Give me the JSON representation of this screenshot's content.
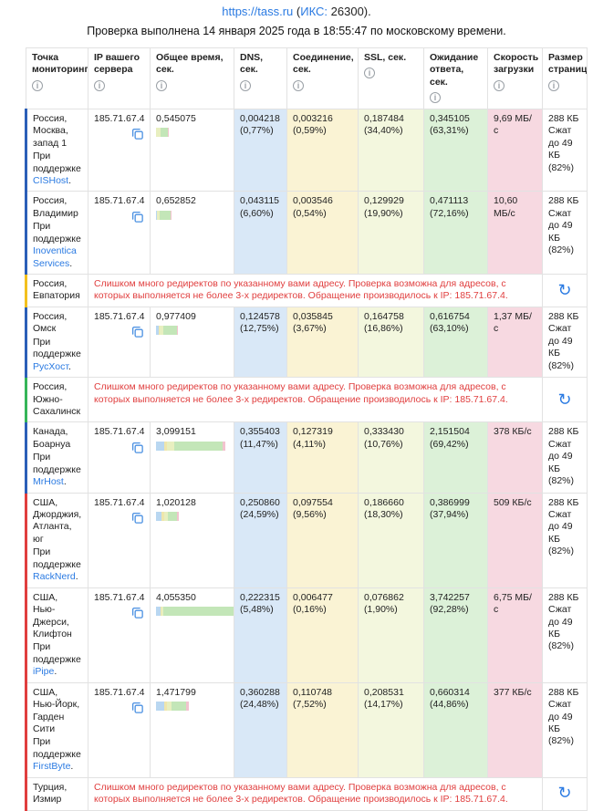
{
  "header": {
    "site_link": "https://tass.ru",
    "paren_open": " (",
    "iks_label": "ИКС:",
    "iks_value": " 26300",
    "paren_close": ").",
    "subtitle": "Проверка выполнена 14 января 2025 года в 18:55:47 по московскому времени."
  },
  "colors": {
    "link": "#2a7ae2",
    "error_text": "#e03e3e",
    "columns": {
      "dns": "#d9e8f7",
      "connection": "#faf3d4",
      "ssl": "#f3f7de",
      "wait": "#dcf1d8",
      "speed": "#f7d9e1"
    },
    "bar": {
      "dns": "#b9d7f1",
      "connection": "#efe6ac",
      "ssl": "#e8efc0",
      "wait": "#c3e6b8",
      "download": "#f2c3ce"
    }
  },
  "table": {
    "columns": [
      {
        "label": "Точка мониторинга",
        "info_icon": "info-icon"
      },
      {
        "label": "IP вашего сервера",
        "info_icon": "info-icon"
      },
      {
        "label": "Общее время, сек.",
        "info_icon": "info-icon"
      },
      {
        "label": "DNS, сек.",
        "info_icon": "info-icon"
      },
      {
        "label": "Соединение, сек.",
        "info_icon": "info-icon"
      },
      {
        "label": "SSL, сек.",
        "info_icon": "info-icon"
      },
      {
        "label": "Ожидание ответа, сек.",
        "info_icon": "info-icon"
      },
      {
        "label": "Скорость загрузки",
        "info_icon": "info-icon"
      },
      {
        "label": "Размер страницы",
        "info_icon": "info-icon"
      }
    ],
    "max_total_sec": 4.05535,
    "rows": [
      {
        "type": "ok",
        "accent": "#2b5fb8",
        "location": "Россия, Москва, запад 1",
        "support_prefix": "При поддержке",
        "support_link": "CISHost",
        "support_suffix": ".",
        "ip": "185.71.67.4",
        "total": "0,545075",
        "total_value": 0.545075,
        "dns_v": "0,004218",
        "dns_p": "(0,77%)",
        "dns_pct": 0.77,
        "conn_v": "0,003216",
        "conn_p": "(0,59%)",
        "conn_pct": 0.59,
        "ssl_v": "0,187484",
        "ssl_p": "(34,40%)",
        "ssl_pct": 34.4,
        "wait_v": "0,345105",
        "wait_p": "(63,31%)",
        "wait_pct": 63.31,
        "speed": "9,69 МБ/с",
        "size": "288 КБ\nСжат\nдо 49 КБ\n(82%)"
      },
      {
        "type": "ok",
        "accent": "#2b5fb8",
        "location": "Россия, Владимир",
        "support_prefix": "При поддержке",
        "support_link": "Inoventica Services",
        "support_suffix": ".",
        "ip": "185.71.67.4",
        "total": "0,652852",
        "total_value": 0.652852,
        "dns_v": "0,043115",
        "dns_p": "(6,60%)",
        "dns_pct": 6.6,
        "conn_v": "0,003546",
        "conn_p": "(0,54%)",
        "conn_pct": 0.54,
        "ssl_v": "0,129929",
        "ssl_p": "(19,90%)",
        "ssl_pct": 19.9,
        "wait_v": "0,471113",
        "wait_p": "(72,16%)",
        "wait_pct": 72.16,
        "speed": "10,60 МБ/с",
        "size": "288 КБ\nСжат\nдо 49 КБ\n(82%)"
      },
      {
        "type": "error",
        "accent": "#f2c01d",
        "location": "Россия, Евпатория",
        "error": "Слишком много редиректов по указанному вами адресу. Проверка возможна для адресов, с которых выполняется не более 3-х редиректов. Обращение производилось к IP: 185.71.67.4."
      },
      {
        "type": "ok",
        "accent": "#2b5fb8",
        "location": "Россия, Омск",
        "support_prefix": "При поддержке",
        "support_link": "РусХост",
        "support_suffix": ".",
        "ip": "185.71.67.4",
        "total": "0,977409",
        "total_value": 0.977409,
        "dns_v": "0,124578",
        "dns_p": "(12,75%)",
        "dns_pct": 12.75,
        "conn_v": "0,035845",
        "conn_p": "(3,67%)",
        "conn_pct": 3.67,
        "ssl_v": "0,164758",
        "ssl_p": "(16,86%)",
        "ssl_pct": 16.86,
        "wait_v": "0,616754",
        "wait_p": "(63,10%)",
        "wait_pct": 63.1,
        "speed": "1,37 МБ/с",
        "size": "288 КБ\nСжат\nдо 49 КБ\n(82%)"
      },
      {
        "type": "error",
        "accent": "#35b558",
        "location": "Россия, Южно-Сахалинск",
        "error": "Слишком много редиректов по указанному вами адресу. Проверка возможна для адресов, с которых выполняется не более 3-х редиректов. Обращение производилось к IP: 185.71.67.4."
      },
      {
        "type": "ok",
        "accent": "#2b5fb8",
        "location": "Канада, Боарнуа",
        "support_prefix": "При поддержке",
        "support_link": "MrHost",
        "support_suffix": ".",
        "ip": "185.71.67.4",
        "total": "3,099151",
        "total_value": 3.099151,
        "dns_v": "0,355403",
        "dns_p": "(11,47%)",
        "dns_pct": 11.47,
        "conn_v": "0,127319",
        "conn_p": "(4,11%)",
        "conn_pct": 4.11,
        "ssl_v": "0,333430",
        "ssl_p": "(10,76%)",
        "ssl_pct": 10.76,
        "wait_v": "2,151504",
        "wait_p": "(69,42%)",
        "wait_pct": 69.42,
        "speed": "378 КБ/с",
        "size": "288 КБ\nСжат\nдо 49 КБ\n(82%)"
      },
      {
        "type": "ok",
        "accent": "#e03e3e",
        "location": "США, Джорджия, Атланта, юг",
        "support_prefix": "При поддержке",
        "support_link": "RackNerd",
        "support_suffix": ".",
        "ip": "185.71.67.4",
        "total": "1,020128",
        "total_value": 1.020128,
        "dns_v": "0,250860",
        "dns_p": "(24,59%)",
        "dns_pct": 24.59,
        "conn_v": "0,097554",
        "conn_p": "(9,56%)",
        "conn_pct": 9.56,
        "ssl_v": "0,186660",
        "ssl_p": "(18,30%)",
        "ssl_pct": 18.3,
        "wait_v": "0,386999",
        "wait_p": "(37,94%)",
        "wait_pct": 37.94,
        "speed": "509 КБ/с",
        "size": "288 КБ\nСжат\nдо 49 КБ\n(82%)"
      },
      {
        "type": "ok",
        "accent": "#e03e3e",
        "location": "США, Нью-Джерси, Клифтон",
        "support_prefix": "При поддержке",
        "support_link": "iPipe",
        "support_suffix": ".",
        "ip": "185.71.67.4",
        "total": "4,055350",
        "total_value": 4.05535,
        "dns_v": "0,222315",
        "dns_p": "(5,48%)",
        "dns_pct": 5.48,
        "conn_v": "0,006477",
        "conn_p": "(0,16%)",
        "conn_pct": 0.16,
        "ssl_v": "0,076862",
        "ssl_p": "(1,90%)",
        "ssl_pct": 1.9,
        "wait_v": "3,742257",
        "wait_p": "(92,28%)",
        "wait_pct": 92.28,
        "speed": "6,75 МБ/с",
        "size": "288 КБ\nСжат\nдо 49 КБ\n(82%)"
      },
      {
        "type": "ok",
        "accent": "#e03e3e",
        "location": "США, Нью-Йорк, Гарден Сити",
        "support_prefix": "При поддержке",
        "support_link": "FirstByte",
        "support_suffix": ".",
        "ip": "185.71.67.4",
        "total": "1,471799",
        "total_value": 1.471799,
        "dns_v": "0,360288",
        "dns_p": "(24,48%)",
        "dns_pct": 24.48,
        "conn_v": "0,110748",
        "conn_p": "(7,52%)",
        "conn_pct": 7.52,
        "ssl_v": "0,208531",
        "ssl_p": "(14,17%)",
        "ssl_pct": 14.17,
        "wait_v": "0,660314",
        "wait_p": "(44,86%)",
        "wait_pct": 44.86,
        "speed": "377 КБ/с",
        "size": "288 КБ\nСжат\nдо 49 КБ\n(82%)"
      },
      {
        "type": "error",
        "accent": "#e03e3e",
        "location": "Турция, Измир",
        "error": "Слишком много редиректов по указанному вами адресу. Проверка возможна для адресов, с которых выполняется не более 3-х редиректов. Обращение производилось к IP: 185.71.67.4."
      }
    ]
  }
}
